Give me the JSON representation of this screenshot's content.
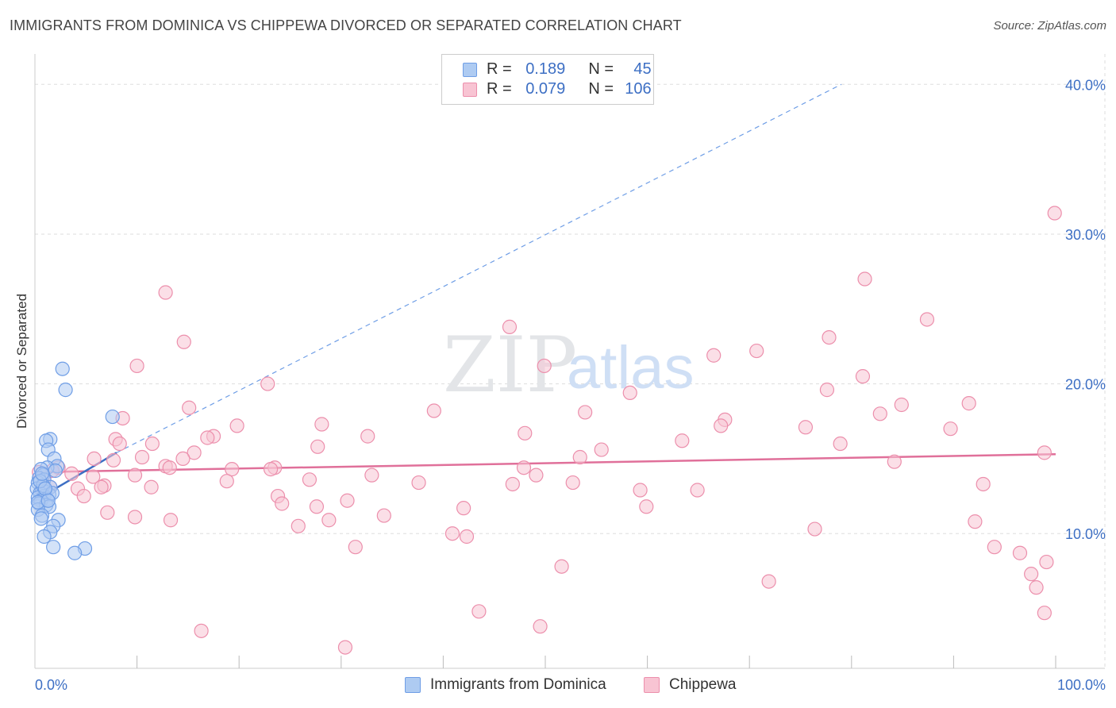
{
  "header": {
    "title": "IMMIGRANTS FROM DOMINICA VS CHIPPEWA DIVORCED OR SEPARATED CORRELATION CHART",
    "source": "Source: ZipAtlas.com"
  },
  "watermark": {
    "text_zip": "ZIP",
    "text_atlas": "atlas"
  },
  "legend": {
    "r_label": "R =",
    "n_label": "N =",
    "series": [
      {
        "name": "Immigrants from Dominica",
        "r": "0.189",
        "n": "45",
        "fill": "#aecbf2",
        "stroke": "#6f9ee6"
      },
      {
        "name": "Chippewa",
        "r": "0.079",
        "n": "106",
        "fill": "#f8c4d3",
        "stroke": "#ec8fac"
      }
    ]
  },
  "chart_data": {
    "type": "scatter",
    "title": "IMMIGRANTS FROM DOMINICA VS CHIPPEWA DIVORCED OR SEPARATED CORRELATION CHART",
    "xlabel": "",
    "ylabel": "Divorced or Separated",
    "xlim": [
      0,
      100
    ],
    "ylim": [
      1,
      41.5
    ],
    "x_tick_labels": [
      {
        "value": 0,
        "label": "0.0%"
      },
      {
        "value": 100,
        "label": "100.0%"
      }
    ],
    "y_tick_labels": [
      {
        "value": 10,
        "label": "10.0%"
      },
      {
        "value": 20,
        "label": "20.0%"
      },
      {
        "value": 30,
        "label": "30.0%"
      },
      {
        "value": 40,
        "label": "40.0%"
      }
    ],
    "x_minor_ticks": [
      10,
      20,
      30,
      40,
      50,
      60,
      70,
      80,
      90,
      100
    ],
    "grid": true,
    "series": [
      {
        "name": "Immigrants from Dominica",
        "color": "#6f9ee6",
        "fill": "#aecbf2",
        "trend": {
          "x0": 0,
          "y0": 12.2,
          "x1": 8,
          "y1": 15.4,
          "color": "#3d6fc4"
        },
        "trend_extended": {
          "x0": 8,
          "y0": 15.4,
          "x1": 79,
          "y1": 40.0,
          "color": "#6f9ee6"
        },
        "points": [
          [
            2.7,
            21.0
          ],
          [
            3.0,
            19.6
          ],
          [
            7.6,
            17.8
          ],
          [
            1.5,
            16.3
          ],
          [
            1.1,
            16.2
          ],
          [
            1.3,
            15.6
          ],
          [
            1.9,
            15.0
          ],
          [
            2.2,
            14.5
          ],
          [
            1.2,
            14.4
          ],
          [
            0.6,
            14.3
          ],
          [
            2.0,
            14.2
          ],
          [
            0.8,
            13.9
          ],
          [
            0.4,
            13.7
          ],
          [
            0.9,
            13.6
          ],
          [
            0.3,
            13.4
          ],
          [
            1.5,
            13.1
          ],
          [
            0.2,
            13.0
          ],
          [
            0.7,
            12.9
          ],
          [
            1.0,
            12.8
          ],
          [
            0.5,
            12.7
          ],
          [
            1.4,
            12.6
          ],
          [
            0.9,
            12.5
          ],
          [
            0.3,
            12.4
          ],
          [
            1.2,
            12.3
          ],
          [
            0.6,
            12.2
          ],
          [
            0.4,
            12.0
          ],
          [
            1.1,
            11.9
          ],
          [
            1.4,
            11.8
          ],
          [
            0.3,
            11.6
          ],
          [
            0.7,
            11.2
          ],
          [
            0.6,
            11.0
          ],
          [
            2.3,
            10.9
          ],
          [
            1.8,
            10.5
          ],
          [
            1.5,
            10.1
          ],
          [
            0.9,
            9.8
          ],
          [
            1.8,
            9.1
          ],
          [
            4.9,
            9.0
          ],
          [
            3.9,
            8.7
          ],
          [
            0.8,
            13.2
          ],
          [
            0.5,
            13.5
          ],
          [
            1.7,
            12.7
          ],
          [
            0.3,
            12.1
          ],
          [
            1.0,
            13.0
          ],
          [
            0.7,
            14.0
          ],
          [
            1.3,
            12.2
          ]
        ]
      },
      {
        "name": "Chippewa",
        "color": "#ec8fac",
        "fill": "#f8c4d3",
        "trend": {
          "x0": 0,
          "y0": 14.1,
          "x1": 100,
          "y1": 15.3,
          "color": "#e0709a"
        },
        "points": [
          [
            99.9,
            31.4
          ],
          [
            81.3,
            27.0
          ],
          [
            87.4,
            24.3
          ],
          [
            12.8,
            26.1
          ],
          [
            46.5,
            23.8
          ],
          [
            77.8,
            23.1
          ],
          [
            14.6,
            22.8
          ],
          [
            70.7,
            22.2
          ],
          [
            66.5,
            21.9
          ],
          [
            10.0,
            21.2
          ],
          [
            49.9,
            21.2
          ],
          [
            22.8,
            20.0
          ],
          [
            81.1,
            20.5
          ],
          [
            77.6,
            19.6
          ],
          [
            58.3,
            19.4
          ],
          [
            84.9,
            18.6
          ],
          [
            91.5,
            18.7
          ],
          [
            15.1,
            18.4
          ],
          [
            39.1,
            18.2
          ],
          [
            53.9,
            18.1
          ],
          [
            82.8,
            18.0
          ],
          [
            8.6,
            17.7
          ],
          [
            67.6,
            17.6
          ],
          [
            67.2,
            17.2
          ],
          [
            19.8,
            17.2
          ],
          [
            28.1,
            17.3
          ],
          [
            75.5,
            17.1
          ],
          [
            89.7,
            17.0
          ],
          [
            48.0,
            16.7
          ],
          [
            32.6,
            16.5
          ],
          [
            17.5,
            16.5
          ],
          [
            16.9,
            16.4
          ],
          [
            7.9,
            16.3
          ],
          [
            11.5,
            16.0
          ],
          [
            63.4,
            16.2
          ],
          [
            78.9,
            16.0
          ],
          [
            8.3,
            16.0
          ],
          [
            27.7,
            15.8
          ],
          [
            55.5,
            15.6
          ],
          [
            15.6,
            15.4
          ],
          [
            53.4,
            15.1
          ],
          [
            98.9,
            15.4
          ],
          [
            10.5,
            15.1
          ],
          [
            14.5,
            15.0
          ],
          [
            5.8,
            15.0
          ],
          [
            7.7,
            14.9
          ],
          [
            84.2,
            14.8
          ],
          [
            12.8,
            14.5
          ],
          [
            13.2,
            14.4
          ],
          [
            2.3,
            14.4
          ],
          [
            23.5,
            14.4
          ],
          [
            19.3,
            14.3
          ],
          [
            23.1,
            14.3
          ],
          [
            47.9,
            14.4
          ],
          [
            0.4,
            14.1
          ],
          [
            3.6,
            14.0
          ],
          [
            9.8,
            13.9
          ],
          [
            33.0,
            13.9
          ],
          [
            49.1,
            13.9
          ],
          [
            5.7,
            13.8
          ],
          [
            0.9,
            13.7
          ],
          [
            26.9,
            13.6
          ],
          [
            18.8,
            13.5
          ],
          [
            37.6,
            13.4
          ],
          [
            52.7,
            13.4
          ],
          [
            46.8,
            13.3
          ],
          [
            6.8,
            13.2
          ],
          [
            92.9,
            13.3
          ],
          [
            1.5,
            13.1
          ],
          [
            11.4,
            13.1
          ],
          [
            4.2,
            13.0
          ],
          [
            6.5,
            13.1
          ],
          [
            59.3,
            12.9
          ],
          [
            64.9,
            12.9
          ],
          [
            0.9,
            12.7
          ],
          [
            4.8,
            12.5
          ],
          [
            23.8,
            12.5
          ],
          [
            24.2,
            12.0
          ],
          [
            30.6,
            12.2
          ],
          [
            27.6,
            11.8
          ],
          [
            42.0,
            11.7
          ],
          [
            59.9,
            11.8
          ],
          [
            7.1,
            11.4
          ],
          [
            34.2,
            11.2
          ],
          [
            9.8,
            11.1
          ],
          [
            13.3,
            10.9
          ],
          [
            28.8,
            10.9
          ],
          [
            92.1,
            10.8
          ],
          [
            25.8,
            10.5
          ],
          [
            76.4,
            10.3
          ],
          [
            40.9,
            10.0
          ],
          [
            42.3,
            9.8
          ],
          [
            31.4,
            9.1
          ],
          [
            94.0,
            9.1
          ],
          [
            96.5,
            8.7
          ],
          [
            99.1,
            8.1
          ],
          [
            51.6,
            7.8
          ],
          [
            97.6,
            7.3
          ],
          [
            98.1,
            6.4
          ],
          [
            71.9,
            6.8
          ],
          [
            43.5,
            4.8
          ],
          [
            98.9,
            4.7
          ],
          [
            49.5,
            3.8
          ],
          [
            16.3,
            3.5
          ],
          [
            30.4,
            2.4
          ],
          [
            1.7,
            14.2
          ]
        ]
      }
    ]
  }
}
